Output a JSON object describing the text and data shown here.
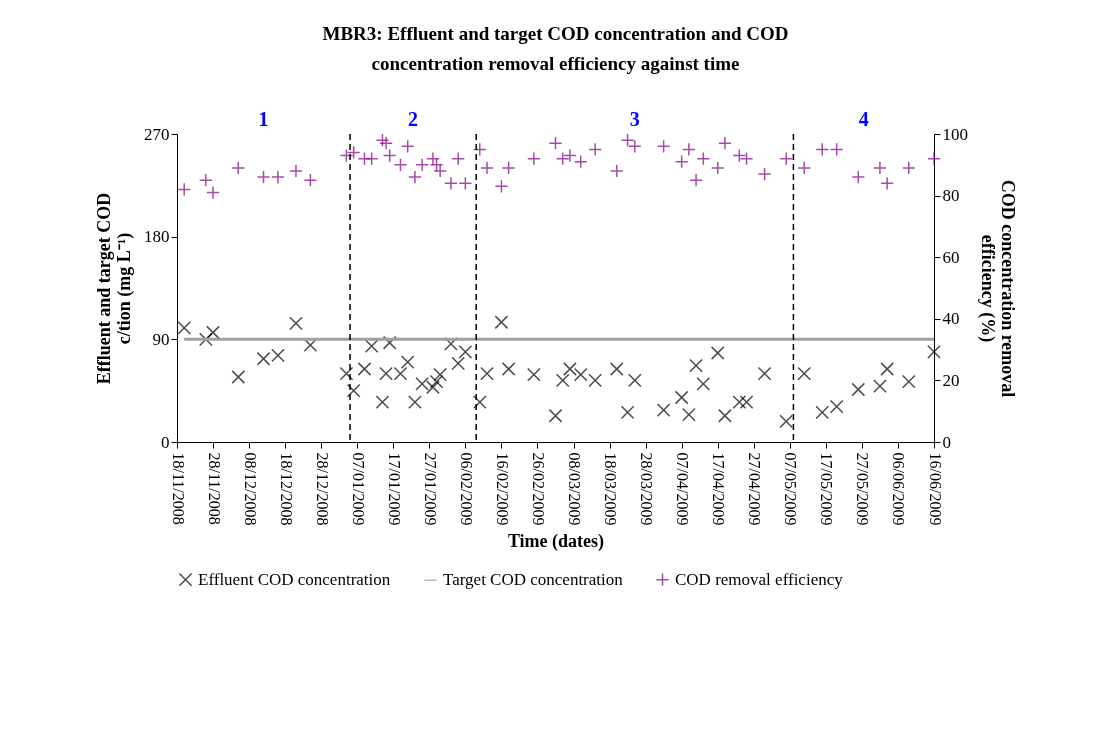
{
  "chart_data": {
    "type": "scatter",
    "title": "MBR3: Effluent and target COD concentration and COD concentration removal efficiency against time",
    "xlabel": "Time (dates)",
    "ylabel": "Effluent and target COD c/tion (mg L⁻¹)",
    "y2label": "COD concentration removal efficiency (%)",
    "x": [
      "2008-11-20",
      "2008-11-26",
      "2008-11-28",
      "2008-12-05",
      "2008-12-12",
      "2008-12-16",
      "2008-12-21",
      "2008-12-25",
      "2009-01-04",
      "2009-01-06",
      "2009-01-09",
      "2009-01-11",
      "2009-01-14",
      "2009-01-15",
      "2009-01-16",
      "2009-01-19",
      "2009-01-21",
      "2009-01-23",
      "2009-01-25",
      "2009-01-28",
      "2009-01-29",
      "2009-01-30",
      "2009-02-02",
      "2009-02-04",
      "2009-02-06",
      "2009-02-10",
      "2009-02-12",
      "2009-02-16",
      "2009-02-18",
      "2009-02-25",
      "2009-03-03",
      "2009-03-05",
      "2009-03-07",
      "2009-03-10",
      "2009-03-14",
      "2009-03-20",
      "2009-03-23",
      "2009-03-25",
      "2009-04-02",
      "2009-04-07",
      "2009-04-09",
      "2009-04-11",
      "2009-04-13",
      "2009-04-17",
      "2009-04-19",
      "2009-04-23",
      "2009-04-25",
      "2009-04-30",
      "2009-05-06",
      "2009-05-11",
      "2009-05-16",
      "2009-05-20",
      "2009-05-26",
      "2009-06-01",
      "2009-06-03",
      "2009-06-09",
      "2009-06-16"
    ],
    "series": [
      {
        "name": "Effluent COD concentration",
        "color": "#000000",
        "marker": "cross",
        "values": [
          100,
          90,
          96,
          57,
          73,
          76,
          104,
          85,
          60,
          45,
          64,
          84,
          35,
          60,
          87,
          60,
          70,
          35,
          51,
          48,
          53,
          59,
          86,
          69,
          79,
          35,
          60,
          105,
          64,
          59,
          23,
          54,
          64,
          59,
          54,
          64,
          26,
          54,
          28,
          39,
          24,
          67,
          51,
          78,
          23,
          35,
          35,
          60,
          18,
          60,
          26,
          31,
          46,
          49,
          64,
          53,
          79
        ]
      },
      {
        "name": "Target COD concentration",
        "type": "line",
        "color": "#a0a0a0",
        "marker": "none",
        "x": [
          "2008-11-20",
          "2009-06-16"
        ],
        "values": [
          90,
          90
        ]
      },
      {
        "name": "COD removal efficiency",
        "color": "#800080",
        "marker": "plus",
        "axis": "y2",
        "values": [
          82,
          85,
          81,
          89,
          86,
          86,
          88,
          85,
          93,
          94,
          92,
          92,
          98,
          97,
          93,
          90,
          96,
          86,
          90,
          92,
          90,
          88,
          84,
          92,
          84,
          95,
          89,
          83,
          89,
          92,
          97,
          92,
          93,
          91,
          95,
          88,
          98,
          96,
          96,
          91,
          95,
          85,
          92,
          89,
          97,
          93,
          92,
          87,
          92,
          89,
          95,
          95,
          86,
          89,
          84,
          89,
          92
        ]
      }
    ],
    "xlim": [
      "2008-11-18",
      "2009-06-16"
    ],
    "xticks": [
      {
        "value": "2008-11-18",
        "label": "18/11/2008"
      },
      {
        "value": "2008-11-28",
        "label": "28/11/2008"
      },
      {
        "value": "2008-12-08",
        "label": "08/12/2008"
      },
      {
        "value": "2008-12-18",
        "label": "18/12/2008"
      },
      {
        "value": "2008-12-28",
        "label": "28/12/2008"
      },
      {
        "value": "2009-01-07",
        "label": "07/01/2009"
      },
      {
        "value": "2009-01-17",
        "label": "17/01/2009"
      },
      {
        "value": "2009-01-27",
        "label": "27/01/2009"
      },
      {
        "value": "2009-02-06",
        "label": "06/02/2009"
      },
      {
        "value": "2009-02-16",
        "label": "16/02/2009"
      },
      {
        "value": "2009-02-26",
        "label": "26/02/2009"
      },
      {
        "value": "2009-03-08",
        "label": "08/03/2009"
      },
      {
        "value": "2009-03-18",
        "label": "18/03/2009"
      },
      {
        "value": "2009-03-28",
        "label": "28/03/2009"
      },
      {
        "value": "2009-04-07",
        "label": "07/04/2009"
      },
      {
        "value": "2009-04-17",
        "label": "17/04/2009"
      },
      {
        "value": "2009-04-27",
        "label": "27/04/2009"
      },
      {
        "value": "2009-05-07",
        "label": "07/05/2009"
      },
      {
        "value": "2009-05-17",
        "label": "17/05/2009"
      },
      {
        "value": "2009-05-27",
        "label": "27/05/2009"
      },
      {
        "value": "2009-06-06",
        "label": "06/06/2009"
      },
      {
        "value": "2009-06-16",
        "label": "16/06/2009"
      }
    ],
    "ylim": [
      0,
      270
    ],
    "yticks": [
      0,
      90,
      180,
      270
    ],
    "y2lim": [
      0,
      100
    ],
    "y2ticks": [
      0,
      20,
      40,
      60,
      80,
      100
    ],
    "ref_lines": [
      {
        "axis": "x",
        "value": "2009-01-05",
        "color": "#000000",
        "line_style": "dashed"
      },
      {
        "axis": "x",
        "value": "2009-02-09",
        "color": "#000000",
        "line_style": "dashed"
      },
      {
        "axis": "x",
        "value": "2009-05-08",
        "color": "#000000",
        "line_style": "dashed"
      }
    ],
    "annotations": [
      "1",
      "2",
      "3",
      "4"
    ],
    "legend": "bottom",
    "grid": false
  }
}
